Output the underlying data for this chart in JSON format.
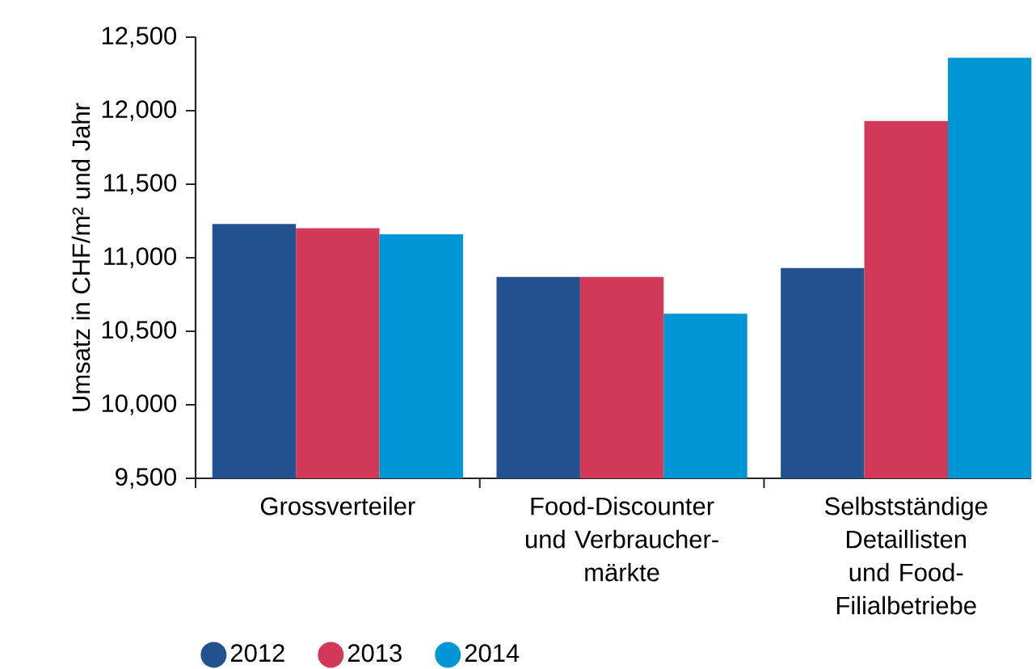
{
  "chart_data": {
    "type": "bar",
    "ylabel": "Umsatz in CHF/m² und Jahr",
    "categories": [
      "Grossverteiler",
      "Food-Discounter und Verbraucher-märkte",
      "Selbstständige Detaillisten und Food-Filialbetriebe"
    ],
    "series": [
      {
        "name": "2012",
        "color": "#22528f",
        "values": [
          11230,
          10870,
          10930
        ]
      },
      {
        "name": "2013",
        "color": "#d23857",
        "values": [
          11200,
          10870,
          11930
        ]
      },
      {
        "name": "2014",
        "color": "#0096d6",
        "values": [
          11160,
          10620,
          12360
        ]
      }
    ],
    "ylim": [
      9500,
      12500
    ],
    "yticks": [
      {
        "value": 9500,
        "label": "9,500"
      },
      {
        "value": 10000,
        "label": "10,000"
      },
      {
        "value": 10500,
        "label": "10,500"
      },
      {
        "value": 11000,
        "label": "11,000"
      },
      {
        "value": 11500,
        "label": "11,500"
      },
      {
        "value": 12000,
        "label": "12,000"
      },
      {
        "value": 12500,
        "label": "12,500"
      }
    ],
    "legend": "bottom",
    "grid": false
  }
}
